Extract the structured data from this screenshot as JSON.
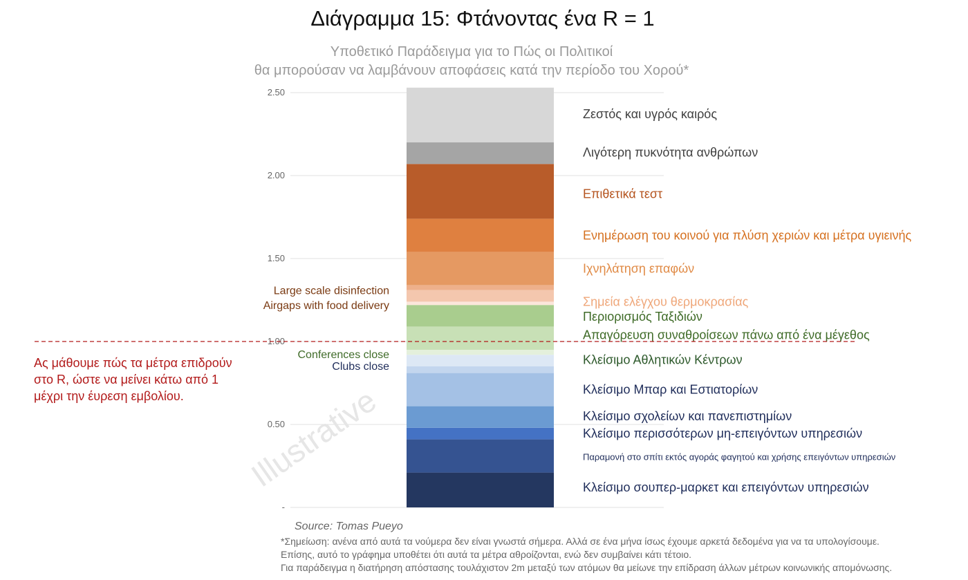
{
  "chart_data": {
    "type": "bar",
    "title": "Διάγραμμα 15: Φτάνοντας ένα R = 1",
    "subtitle_lines": [
      "Υποθετικό Παράδειγμα για το Πώς οι Πολιτικοί",
      "θα μπορούσαν να λαμβάνουν αποφάσεις κατά την περίοδο του Χορού*"
    ],
    "ylim": [
      0,
      2.53
    ],
    "y_ticks": [
      {
        "value": 0,
        "label": "-"
      },
      {
        "value": 0.5,
        "label": "0.50"
      },
      {
        "value": 1.0,
        "label": "1.00"
      },
      {
        "value": 1.5,
        "label": "1.50"
      },
      {
        "value": 2.0,
        "label": "2.00"
      },
      {
        "value": 2.5,
        "label": "2.50"
      }
    ],
    "segments": [
      {
        "name": "Κλείσιμο σουπερ-μαρκετ και επειγόντων υπηρεσιών",
        "start": 0.0,
        "end": 0.21,
        "color": "#243760"
      },
      {
        "name": "Παραμονή στο σπίτι εκτός αγοράς φαγητού και χρήσης επειγόντων υπηρεσιών",
        "start": 0.21,
        "end": 0.41,
        "color": "#355391"
      },
      {
        "name": "Κλείσιμο περισσότερων μη-επειγόντων υπηρεσιών",
        "start": 0.41,
        "end": 0.48,
        "color": "#4472c4"
      },
      {
        "name": "Κλείσιμο σχολείων και πανεπιστημίων",
        "start": 0.48,
        "end": 0.61,
        "color": "#6b9bd2"
      },
      {
        "name": "Κλείσιμο Μπαρ και Εστιατορίων",
        "start": 0.61,
        "end": 0.81,
        "color": "#a4c1e5"
      },
      {
        "name": "Clubs close",
        "start": 0.81,
        "end": 0.85,
        "color": "#c3d6ee"
      },
      {
        "name": "Κλείσιμο Αθλητικών Κέντρων",
        "start": 0.85,
        "end": 0.92,
        "color": "#dde8f5"
      },
      {
        "name": "Conferences close",
        "start": 0.92,
        "end": 0.95,
        "color": "#e4f0dc"
      },
      {
        "name": "Απαγόρευση συναθροίσεων πάνω από ένα μέγεθος",
        "start": 0.95,
        "end": 1.09,
        "color": "#c8e0b6"
      },
      {
        "name": "Περιορισμός Ταξιδιών",
        "start": 1.09,
        "end": 1.22,
        "color": "#a9cd8e"
      },
      {
        "name": "Airgaps with food delivery",
        "start": 1.22,
        "end": 1.24,
        "color": "#fbe6db"
      },
      {
        "name": "Σημεία ελέγχου θερμοκρασίας",
        "start": 1.24,
        "end": 1.31,
        "color": "#f4c7ae"
      },
      {
        "name": "Large scale disinfection",
        "start": 1.31,
        "end": 1.34,
        "color": "#eeb08b"
      },
      {
        "name": "Ιχνηλάτηση επαφών",
        "start": 1.34,
        "end": 1.54,
        "color": "#e59962"
      },
      {
        "name": "Ενημέρωση του κοινού για πλύση χεριών και μέτρα υγιεινής",
        "start": 1.54,
        "end": 1.74,
        "color": "#df8040"
      },
      {
        "name": "Επιθετικά τεστ",
        "start": 1.74,
        "end": 2.07,
        "color": "#b85c2a"
      },
      {
        "name": "Λιγότερη πυκνότητα ανθρώπων",
        "start": 2.07,
        "end": 2.2,
        "color": "#a5a5a5"
      },
      {
        "name": "Ζεστός και υγρός καιρός",
        "start": 2.2,
        "end": 2.53,
        "color": "#d7d7d7"
      }
    ],
    "right_labels": [
      {
        "text": "Ζεστός και υγρός καιρός",
        "at": 2.37,
        "color": "#3f3f3f",
        "size": "normal"
      },
      {
        "text": "Λιγότερη πυκνότητα ανθρώπων",
        "at": 2.14,
        "color": "#3f3f3f",
        "size": "normal"
      },
      {
        "text": "Επιθετικά τεστ",
        "at": 1.89,
        "color": "#b5541f",
        "size": "normal"
      },
      {
        "text": "Ενημέρωση του κοινού για πλύση χεριών και μέτρα υγιεινής",
        "at": 1.64,
        "color": "#d5701f",
        "size": "normal"
      },
      {
        "text": "Ιχνηλάτηση επαφών",
        "at": 1.44,
        "color": "#e08a45",
        "size": "normal"
      },
      {
        "text": "Σημεία ελέγχου θερμοκρασίας",
        "at": 1.24,
        "color": "#efa77a",
        "size": "normal"
      },
      {
        "text": "Περιορισμός Ταξιδιών",
        "at": 1.15,
        "color": "#3f6b28",
        "size": "normal"
      },
      {
        "text": "Απαγόρευση συναθροίσεων πάνω από ένα μέγεθος",
        "at": 1.04,
        "color": "#3f6b28",
        "size": "normal"
      },
      {
        "text": "Κλείσιμο Αθλητικών Κέντρων",
        "at": 0.89,
        "color": "#2e5a2c",
        "size": "normal"
      },
      {
        "text": "Κλείσιμο Μπαρ και Εστιατορίων",
        "at": 0.71,
        "color": "#1f2d5a",
        "size": "normal"
      },
      {
        "text": "Κλείσιμο σχολείων και πανεπιστημίων",
        "at": 0.55,
        "color": "#1f2d5a",
        "size": "normal"
      },
      {
        "text": "Κλείσιμο περισσότερων μη-επειγόντων υπηρεσιών",
        "at": 0.445,
        "color": "#1f2d5a",
        "size": "normal"
      },
      {
        "text": "Παραμονή στο σπίτι εκτός αγοράς φαγητού και χρήσης επειγόντων υπηρεσιών",
        "at": 0.31,
        "color": "#1f2d5a",
        "size": "small"
      },
      {
        "text": "Κλείσιμο σουπερ-μαρκετ και επειγόντων υπηρεσιών",
        "at": 0.12,
        "color": "#1f2d5a",
        "size": "normal"
      }
    ],
    "left_labels": [
      {
        "text": "Large scale disinfection",
        "at": 1.31,
        "color": "#7a3a12"
      },
      {
        "text": "Airgaps with food delivery",
        "at": 1.22,
        "color": "#7a3a12"
      },
      {
        "text": "Conferences close",
        "at": 0.925,
        "color": "#3f6b28"
      },
      {
        "text": "Clubs close",
        "at": 0.855,
        "color": "#1f2d5a"
      }
    ],
    "threshold": {
      "value": 1.0,
      "color": "#b21a1a"
    },
    "threshold_note": [
      "Ας μάθουμε πώς τα μέτρα επιδρούν",
      "στο R, ώστε να μείνει κάτω από 1",
      "μέχρι την έυρεση εμβολίου."
    ],
    "watermark": "Illustrative",
    "source": "Source: Tomas Pueyo",
    "footnote": [
      "*Σημείωση: ανένα από αυτά τα νούμερα δεν είναι γνωστά σήμερα. Αλλά σε ένα μήνα ίσως έχουμε αρκετά δεδομένα για να τα υπολογίσουμε.",
      "Επίσης, αυτό το γράφημα υποθέτει ότι αυτά τα μέτρα αθροίζονται, ενώ δεν συμβαίνει κάτι τέτοιο.",
      "Για παράδειγμα η διατήρηση απόστασης τουλάχιστον 2m μεταξύ των ατόμων θα μείωνε την επίδραση άλλων μέτρων κοινωνικής απομόνωσης."
    ]
  }
}
